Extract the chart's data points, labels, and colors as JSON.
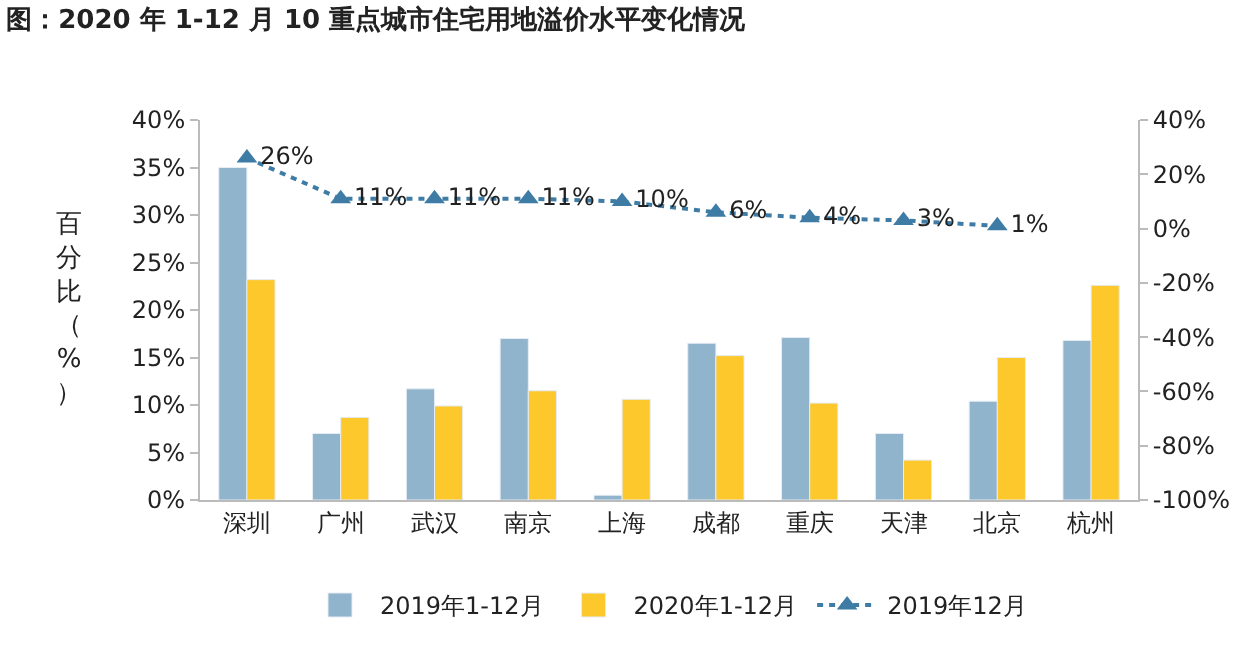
{
  "chart_data": {
    "type": "bar",
    "title": "图：2020 年 1-12 月 10 重点城市住宅用地溢价水平变化情况",
    "ylabel": "百分比（%）",
    "categories": [
      "深圳",
      "广州",
      "武汉",
      "南京",
      "上海",
      "成都",
      "重庆",
      "天津",
      "北京",
      "杭州"
    ],
    "series": [
      {
        "name": "2019年1-12月",
        "color": "#8fb4cc",
        "values": [
          35,
          7,
          11.7,
          17,
          0.5,
          16.5,
          17.1,
          7,
          10.4,
          16.8
        ]
      },
      {
        "name": "2020年1-12月",
        "color": "#fcc82c",
        "values": [
          23.2,
          8.7,
          9.9,
          11.5,
          10.6,
          15.2,
          10.2,
          4.2,
          15,
          22.6
        ]
      },
      {
        "name": "2019年12月",
        "type": "line",
        "axis": "y2",
        "color": "#3e7ca6",
        "marker": "triangle",
        "line_style": "dotted",
        "values": [
          26,
          11,
          11,
          11,
          10,
          6,
          4,
          3,
          1,
          null
        ],
        "value_labels": [
          "26%",
          "11%",
          "11%",
          "11%",
          "10%",
          "6%",
          "4%",
          "3%",
          "1%",
          null
        ]
      }
    ],
    "ylim": [
      0,
      40
    ],
    "yticks": [
      {
        "value": 0,
        "label": "0%"
      },
      {
        "value": 5,
        "label": "5%"
      },
      {
        "value": 10,
        "label": "10%"
      },
      {
        "value": 15,
        "label": "15%"
      },
      {
        "value": 20,
        "label": "20%"
      },
      {
        "value": 25,
        "label": "25%"
      },
      {
        "value": 30,
        "label": "30%"
      },
      {
        "value": 35,
        "label": "35%"
      },
      {
        "value": 40,
        "label": "40%"
      }
    ],
    "y2lim": [
      -100,
      40
    ],
    "y2ticks": [
      {
        "value": -100,
        "label": "-100%"
      },
      {
        "value": -80,
        "label": "-80%"
      },
      {
        "value": -60,
        "label": "-60%"
      },
      {
        "value": -40,
        "label": "-40%"
      },
      {
        "value": -20,
        "label": "-20%"
      },
      {
        "value": 0,
        "label": "0%"
      },
      {
        "value": 20,
        "label": "20%"
      },
      {
        "value": 40,
        "label": "40%"
      }
    ],
    "legend": "bottom"
  }
}
